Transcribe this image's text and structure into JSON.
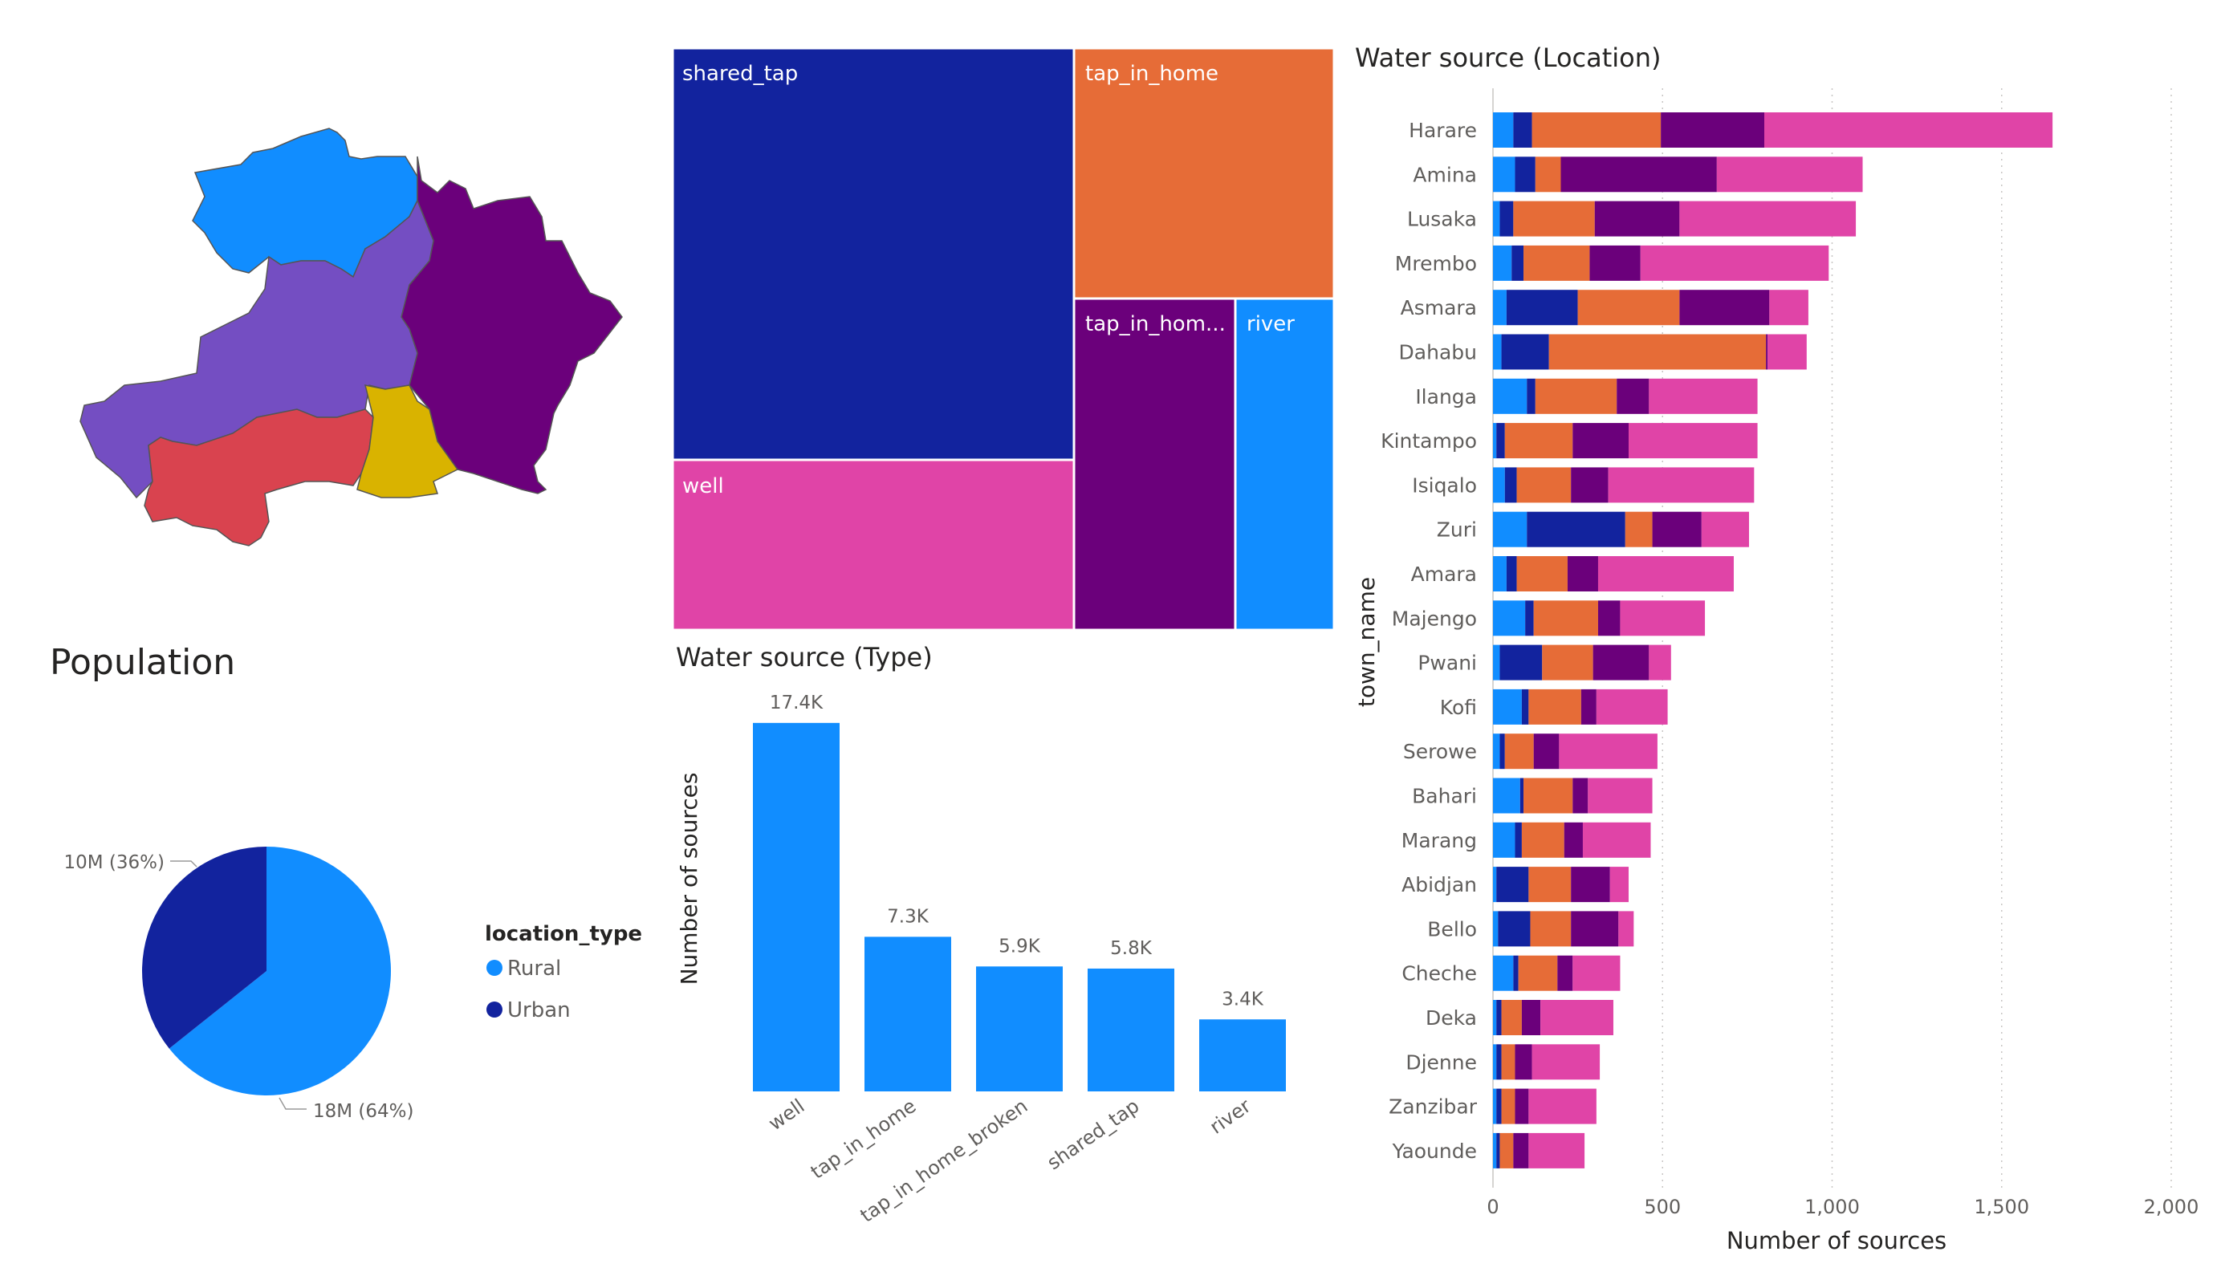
{
  "colors": {
    "light_blue": "#118DFF",
    "dark_blue": "#12239E",
    "orange": "#E66C37",
    "purple": "#6B007B",
    "pink": "#E044A7",
    "violet": "#744EC2",
    "red": "#D9434F",
    "yellow": "#D9B300"
  },
  "titles": {
    "population": "Population",
    "water_type": "Water source (Type)",
    "water_location": "Water source (Location)"
  },
  "chart_data": [
    {
      "id": "map",
      "type": "map",
      "regions": [
        {
          "color": "light_blue"
        },
        {
          "color": "purple"
        },
        {
          "color": "violet"
        },
        {
          "color": "red"
        },
        {
          "color": "yellow"
        }
      ]
    },
    {
      "id": "pie",
      "type": "pie",
      "title": "Population",
      "legend_title": "location_type",
      "series": [
        {
          "name": "Rural",
          "value": 18000000,
          "label": "18M (64%)",
          "color": "light_blue"
        },
        {
          "name": "Urban",
          "value": 10000000,
          "label": "10M (36%)",
          "color": "dark_blue"
        }
      ]
    },
    {
      "id": "treemap",
      "type": "treemap",
      "items": [
        {
          "label": "shared_tap",
          "color": "dark_blue"
        },
        {
          "label": "well",
          "color": "pink"
        },
        {
          "label": "tap_in_home",
          "color": "orange"
        },
        {
          "label": "tap_in_hom...",
          "color": "purple"
        },
        {
          "label": "river",
          "color": "light_blue"
        }
      ]
    },
    {
      "id": "type_bar",
      "type": "bar",
      "title": "Water source (Type)",
      "ylabel": "Number of sources",
      "categories": [
        "well",
        "tap_in_home",
        "tap_in_home_broken",
        "shared_tap",
        "river"
      ],
      "values": [
        17400,
        7300,
        5900,
        5800,
        3400
      ],
      "data_labels": [
        "17.4K",
        "7.3K",
        "5.9K",
        "5.8K",
        "3.4K"
      ],
      "ylim": [
        0,
        18000
      ],
      "color": "light_blue"
    },
    {
      "id": "location_bar",
      "type": "bar",
      "orientation": "horizontal",
      "stacked": true,
      "title": "Water source (Location)",
      "xlabel": "Number of sources",
      "ylabel": "town_name",
      "xlim": [
        0,
        2000
      ],
      "xticks": [
        0,
        500,
        1000,
        1500,
        2000
      ],
      "xtick_labels": [
        "0",
        "500",
        "1,000",
        "1,500",
        "2,000"
      ],
      "grid": true,
      "categories": [
        "Harare",
        "Amina",
        "Lusaka",
        "Mrembo",
        "Asmara",
        "Dahabu",
        "Ilanga",
        "Kintampo",
        "Isiqalo",
        "Zuri",
        "Amara",
        "Majengo",
        "Pwani",
        "Kofi",
        "Serowe",
        "Bahari",
        "Marang",
        "Abidjan",
        "Bello",
        "Cheche",
        "Deka",
        "Djenne",
        "Zanzibar",
        "Yaounde"
      ],
      "series": [
        {
          "color": "light_blue",
          "values": [
            60,
            65,
            20,
            55,
            40,
            25,
            100,
            10,
            35,
            100,
            40,
            95,
            20,
            85,
            20,
            80,
            65,
            10,
            15,
            60,
            10,
            10,
            10,
            10
          ]
        },
        {
          "color": "dark_blue",
          "values": [
            55,
            60,
            40,
            35,
            210,
            140,
            25,
            25,
            35,
            290,
            30,
            25,
            125,
            20,
            15,
            10,
            20,
            95,
            95,
            15,
            15,
            15,
            15,
            10
          ]
        },
        {
          "color": "orange",
          "values": [
            380,
            75,
            240,
            195,
            300,
            640,
            240,
            200,
            160,
            80,
            150,
            190,
            150,
            155,
            85,
            145,
            125,
            125,
            120,
            115,
            60,
            40,
            40,
            40
          ]
        },
        {
          "color": "purple",
          "values": [
            305,
            460,
            250,
            150,
            265,
            5,
            95,
            165,
            110,
            145,
            90,
            65,
            165,
            45,
            75,
            45,
            55,
            115,
            140,
            45,
            55,
            50,
            40,
            45
          ]
        },
        {
          "color": "pink",
          "values": [
            850,
            430,
            520,
            555,
            115,
            115,
            320,
            380,
            430,
            140,
            400,
            250,
            65,
            210,
            290,
            190,
            200,
            55,
            45,
            140,
            215,
            200,
            200,
            165
          ]
        }
      ]
    }
  ]
}
